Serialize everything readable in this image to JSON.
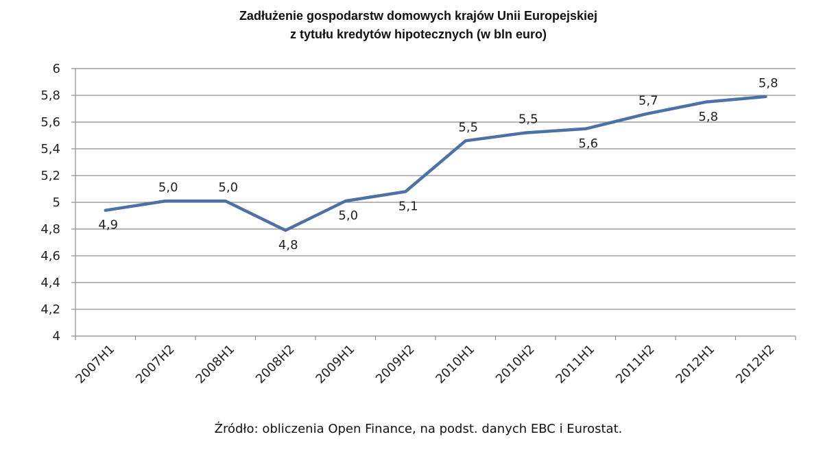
{
  "chart_data": {
    "type": "line",
    "title_line1": "Zadłużenie gospodarstw domowych krajów Unii Europejskiej",
    "title_line2": "z tytułu kredytów hipotecznych (w bln euro)",
    "categories": [
      "2007H1",
      "2007H2",
      "2008H1",
      "2008H2",
      "2009H1",
      "2009H2",
      "2010H1",
      "2010H2",
      "2011H1",
      "2011H2",
      "2012H1",
      "2012H2"
    ],
    "values": [
      4.94,
      5.01,
      5.01,
      4.79,
      5.01,
      5.08,
      5.46,
      5.52,
      5.55,
      5.66,
      5.75,
      5.79
    ],
    "data_labels": [
      "4,9",
      "5,0",
      "5,0",
      "4,8",
      "5,0",
      "5,1",
      "5,5",
      "5,5",
      "5,6",
      "5,7",
      "5,8",
      "5,8"
    ],
    "ylim": [
      4,
      6
    ],
    "y_ticks": [
      "4",
      "4,2",
      "4,4",
      "4,6",
      "4,8",
      "5",
      "5,2",
      "5,4",
      "5,6",
      "5,8",
      "6"
    ],
    "grid": true,
    "legend": "none",
    "line_color": "#4a72a6",
    "source_text": "Źródło: obliczenia Open Finance, na podst. danych EBC i Eurostat."
  }
}
